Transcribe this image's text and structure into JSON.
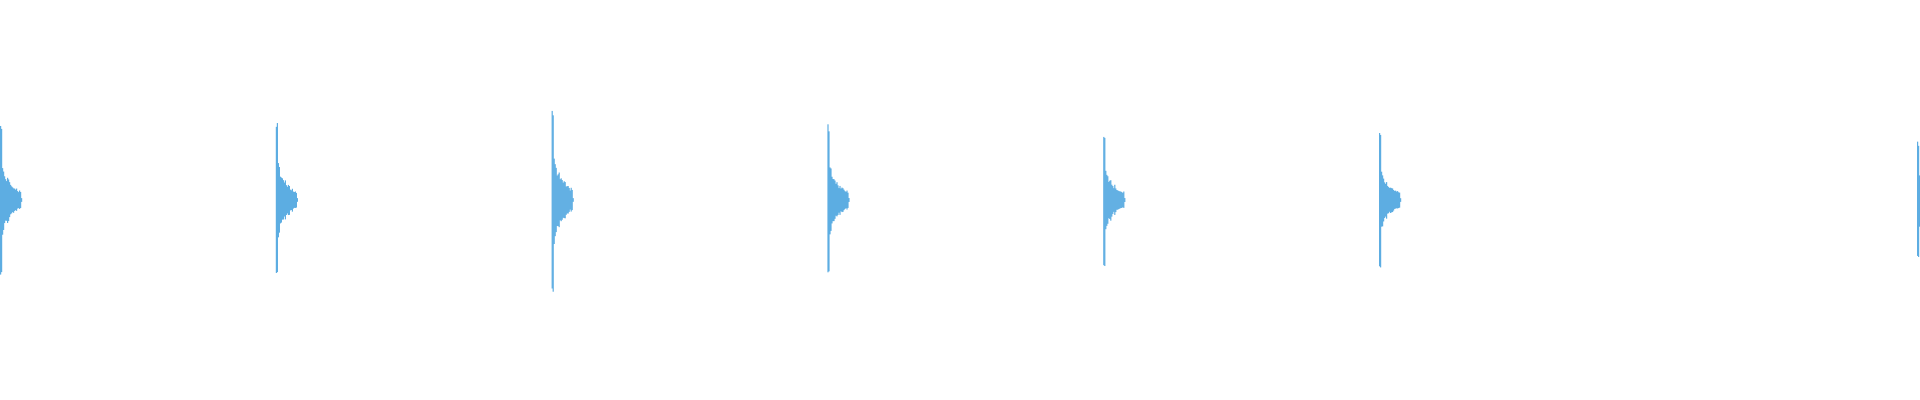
{
  "chart_data": {
    "type": "area",
    "title": "",
    "xlabel": "",
    "ylabel": "",
    "ylim": [
      -1,
      1
    ],
    "grid": false,
    "legend": "none",
    "color": "#5DADE2",
    "bursts": [
      {
        "onset_beat": 0,
        "peak": 0.78
      },
      {
        "onset_beat": 1,
        "peak": 0.79
      },
      {
        "onset_beat": 2,
        "peak": 0.94
      },
      {
        "onset_beat": 3,
        "peak": 0.76
      },
      {
        "onset_beat": 4,
        "peak": 0.68
      },
      {
        "onset_beat": 5,
        "peak": 0.68
      },
      {
        "onset_beat": 7,
        "peak": 0.6
      }
    ]
  }
}
